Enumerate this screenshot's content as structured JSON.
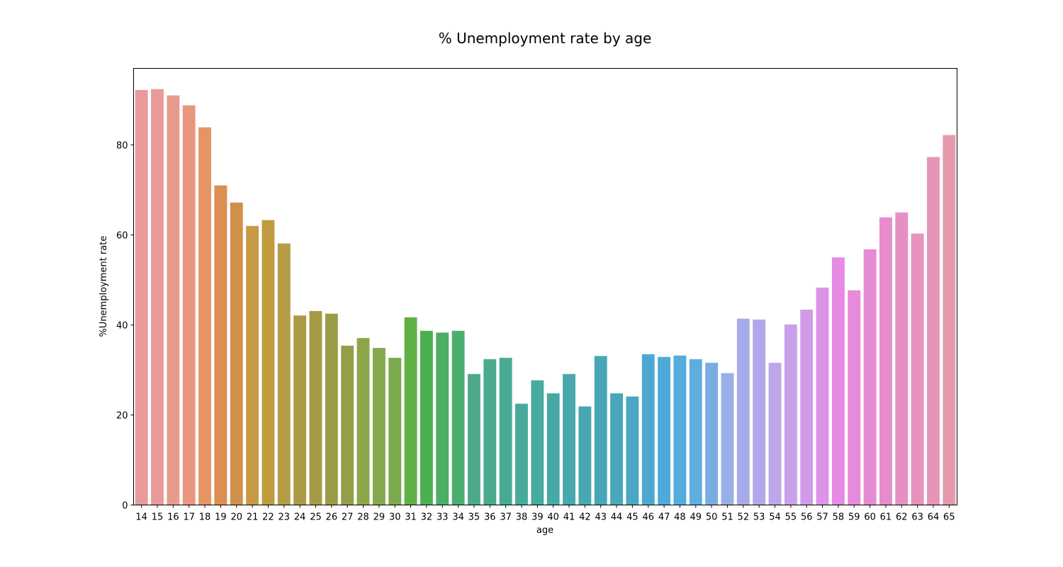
{
  "chart_data": {
    "type": "bar",
    "title": "% Unemployment rate by age",
    "xlabel": "age",
    "ylabel": "%Unemployment rate",
    "ylim": [
      0,
      97
    ],
    "yticks": [
      0,
      20,
      40,
      60,
      80
    ],
    "grid": false,
    "categories": [
      "14",
      "15",
      "16",
      "17",
      "18",
      "19",
      "20",
      "21",
      "22",
      "23",
      "24",
      "25",
      "26",
      "27",
      "28",
      "29",
      "30",
      "31",
      "32",
      "33",
      "34",
      "35",
      "36",
      "37",
      "38",
      "39",
      "40",
      "41",
      "42",
      "43",
      "44",
      "45",
      "46",
      "47",
      "48",
      "49",
      "50",
      "51",
      "52",
      "53",
      "54",
      "55",
      "56",
      "57",
      "58",
      "59",
      "60",
      "61",
      "62",
      "63",
      "64",
      "65"
    ],
    "values": [
      92.2,
      92.4,
      91.0,
      88.8,
      83.9,
      71.0,
      67.2,
      62.0,
      63.3,
      58.1,
      42.1,
      43.1,
      42.5,
      35.4,
      37.1,
      34.9,
      32.7,
      41.7,
      38.7,
      38.3,
      38.7,
      29.1,
      32.4,
      32.7,
      22.5,
      27.7,
      24.8,
      29.1,
      21.9,
      33.1,
      24.8,
      24.1,
      33.5,
      32.9,
      33.2,
      32.4,
      31.6,
      29.3,
      41.4,
      41.2,
      31.6,
      40.1,
      43.4,
      48.3,
      55.0,
      47.7,
      56.8,
      63.9,
      65.0,
      60.3,
      77.3,
      82.2
    ],
    "colors": [
      "#e99a9a",
      "#ea9a98",
      "#e89b8c",
      "#e9967f",
      "#e59563",
      "#dd8e53",
      "#d2904a",
      "#c89a45",
      "#be9c3e",
      "#b59c45",
      "#ad9a45",
      "#a79a45",
      "#9c9b46",
      "#949e48",
      "#8ea64a",
      "#86a84c",
      "#7caa4f",
      "#60b044",
      "#4cb050",
      "#4cae64",
      "#4cae6e",
      "#4ea98a",
      "#4aaa8e",
      "#48aa95",
      "#48aa9a",
      "#48aaa0",
      "#48a8a6",
      "#48a8ab",
      "#48a8b0",
      "#48a6b6",
      "#4aa6bc",
      "#4aa6c2",
      "#4ca8d0",
      "#4eaad8",
      "#52acdc",
      "#5eaee0",
      "#7aace0",
      "#98b0e6",
      "#a6abe8",
      "#b0a8e8",
      "#bea6ea",
      "#c8a2e8",
      "#d09ce8",
      "#dc94e6",
      "#e68ae4",
      "#e68adc",
      "#e68ad4",
      "#e68ccc",
      "#e690c2",
      "#e692bc",
      "#e694b6",
      "#e49aac"
    ]
  }
}
